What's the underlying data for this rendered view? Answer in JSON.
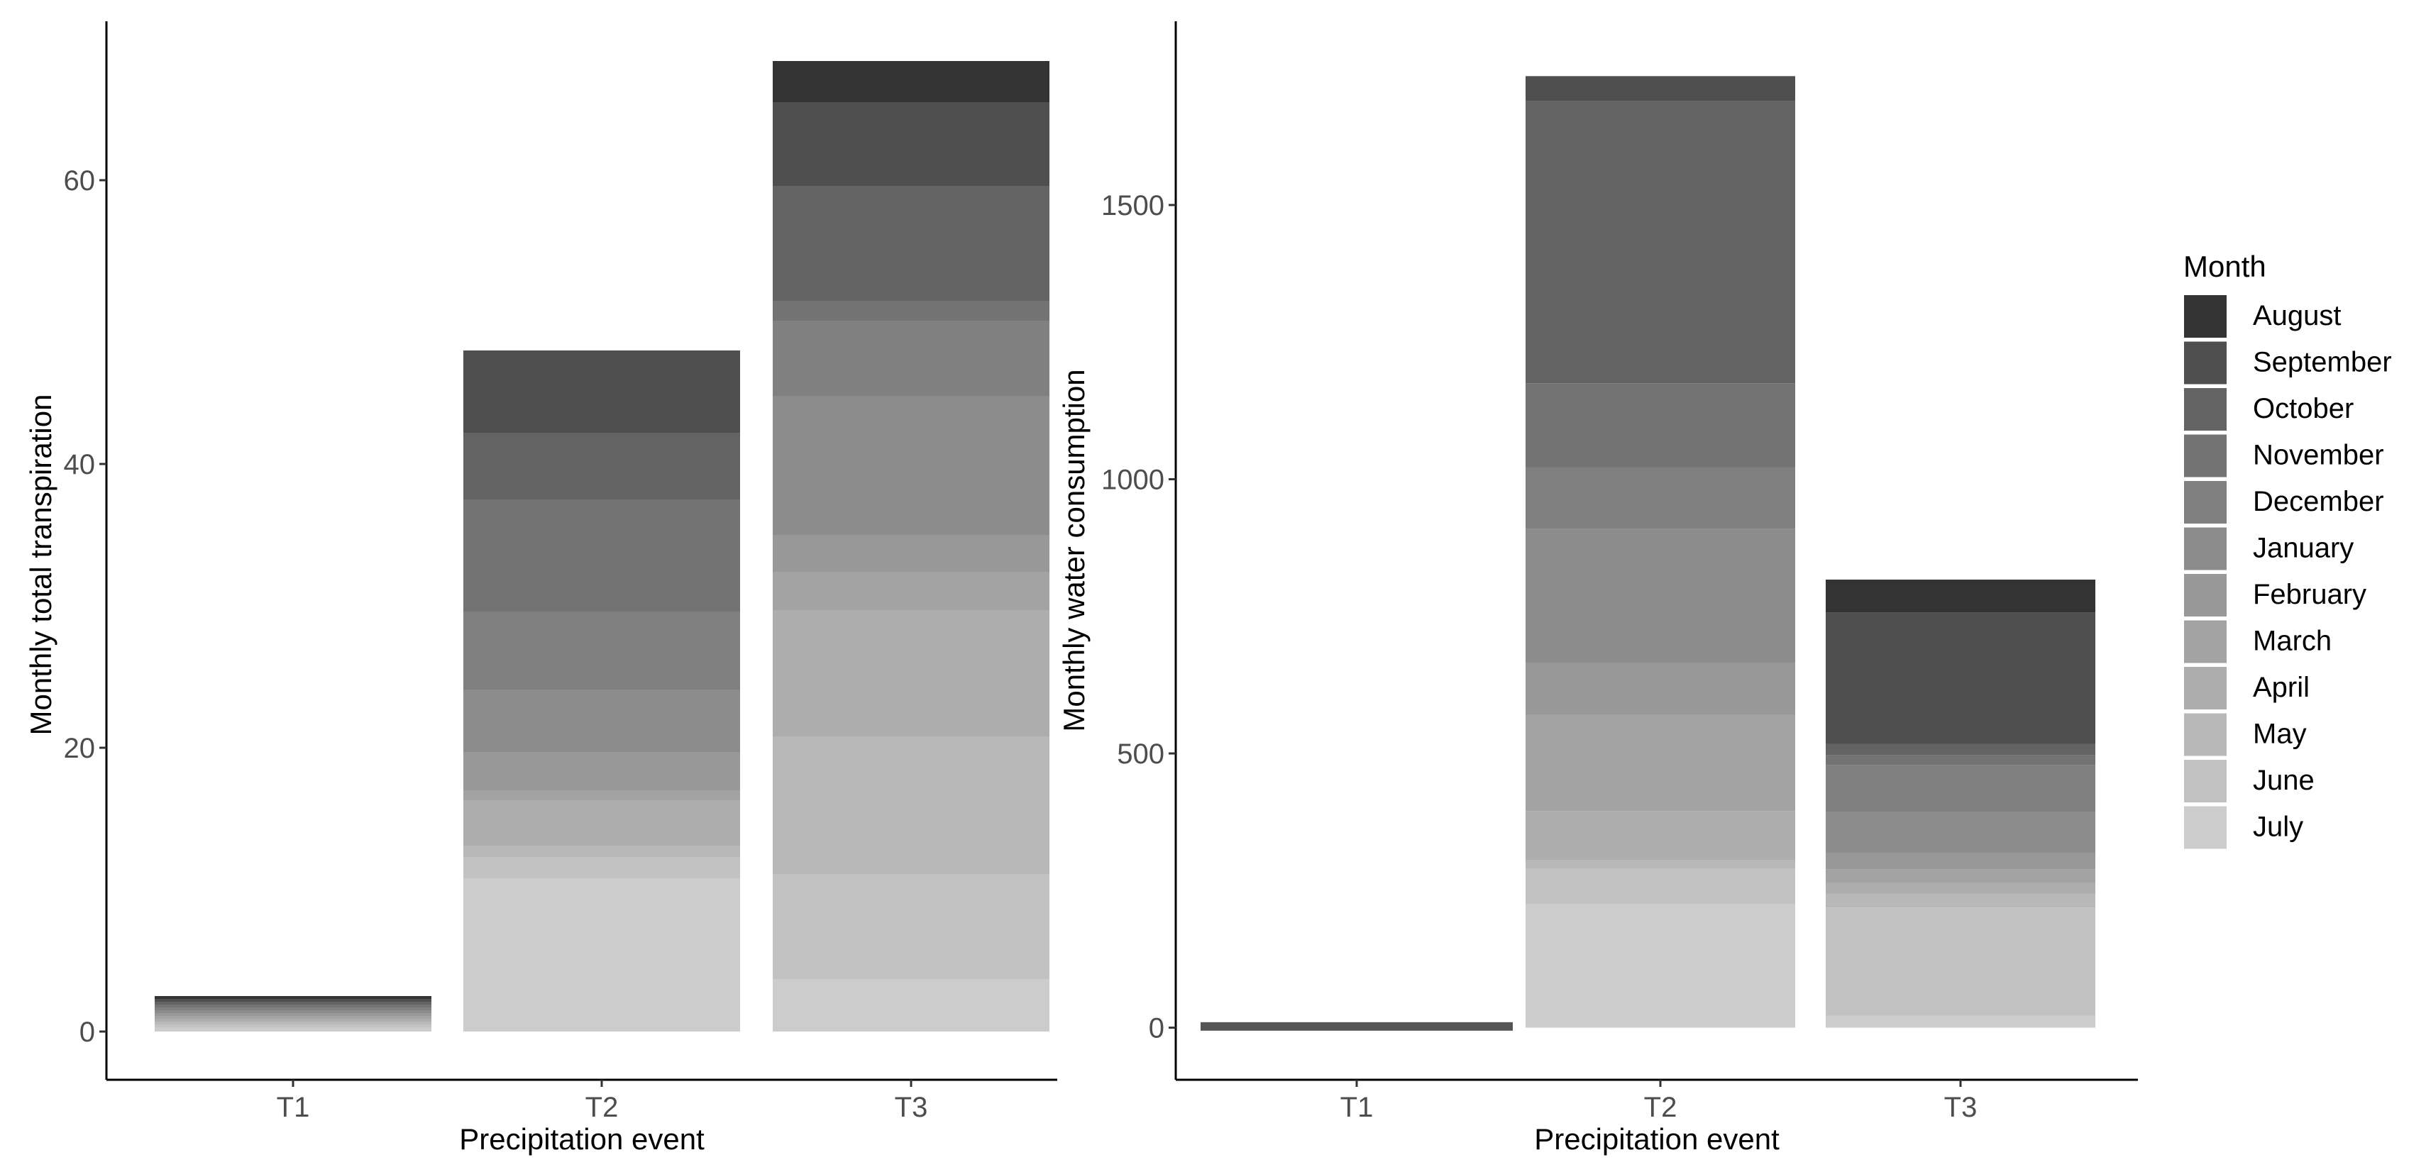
{
  "chart_data": [
    {
      "type": "bar",
      "stacked": true,
      "xlabel": "Precipitation event",
      "ylabel": "Monthly total transpiration",
      "categories": [
        "T1",
        "T2",
        "T3"
      ],
      "ylim": [
        -3.4,
        71.2
      ],
      "yticks": [
        0,
        20,
        40,
        60
      ],
      "grid": false,
      "series": [
        {
          "name": "July",
          "values": [
            0.3,
            10.8,
            3.7
          ]
        },
        {
          "name": "June",
          "values": [
            0.2,
            1.5,
            7.4
          ]
        },
        {
          "name": "May",
          "values": [
            0.2,
            0.8,
            9.7
          ]
        },
        {
          "name": "April",
          "values": [
            0.2,
            3.2,
            8.9
          ]
        },
        {
          "name": "March",
          "values": [
            0.2,
            0.7,
            2.7
          ]
        },
        {
          "name": "February",
          "values": [
            0.2,
            2.7,
            2.6
          ]
        },
        {
          "name": "January",
          "values": [
            0.2,
            4.4,
            9.8
          ]
        },
        {
          "name": "December",
          "values": [
            0.2,
            5.5,
            5.3
          ]
        },
        {
          "name": "November",
          "values": [
            0.2,
            7.9,
            1.4
          ]
        },
        {
          "name": "October",
          "values": [
            0.2,
            4.7,
            8.1
          ]
        },
        {
          "name": "September",
          "values": [
            0.2,
            5.8,
            5.9
          ]
        },
        {
          "name": "August",
          "values": [
            0.2,
            0.0,
            2.9
          ]
        }
      ]
    },
    {
      "type": "bar",
      "stacked": true,
      "xlabel": "Precipitation event",
      "ylabel": "Monthly water consumption",
      "categories": [
        "T1",
        "T2",
        "T3"
      ],
      "ylim": [
        -95,
        1835
      ],
      "yticks": [
        0,
        500,
        1000,
        1500
      ],
      "grid": false,
      "series": [
        {
          "name": "July",
          "values": [
            0,
            225,
            22
          ]
        },
        {
          "name": "June",
          "values": [
            0,
            65,
            197
          ]
        },
        {
          "name": "May",
          "values": [
            0,
            15,
            25
          ]
        },
        {
          "name": "April",
          "values": [
            0,
            90,
            20
          ]
        },
        {
          "name": "March",
          "values": [
            0,
            175,
            25
          ]
        },
        {
          "name": "February",
          "values": [
            0,
            95,
            30
          ]
        },
        {
          "name": "January",
          "values": [
            0,
            245,
            75
          ]
        },
        {
          "name": "December",
          "values": [
            0,
            112,
            85
          ]
        },
        {
          "name": "November",
          "values": [
            0,
            153,
            18
          ]
        },
        {
          "name": "October",
          "values": [
            0,
            515,
            20
          ]
        },
        {
          "name": "September",
          "values": [
            0,
            45,
            240
          ]
        },
        {
          "name": "August",
          "values": [
            0,
            0,
            60
          ]
        }
      ],
      "negative_slivers": {
        "note_values": [
          -15,
          0,
          0
        ]
      }
    }
  ],
  "legend": {
    "title": "Month",
    "position": "right",
    "items": [
      {
        "label": "August",
        "color": "#333333"
      },
      {
        "label": "September",
        "color": "#4f4f4f"
      },
      {
        "label": "October",
        "color": "#636363"
      },
      {
        "label": "November",
        "color": "#737373"
      },
      {
        "label": "December",
        "color": "#808080"
      },
      {
        "label": "January",
        "color": "#8c8c8c"
      },
      {
        "label": "February",
        "color": "#989898"
      },
      {
        "label": "March",
        "color": "#a3a3a3"
      },
      {
        "label": "April",
        "color": "#adadad"
      },
      {
        "label": "May",
        "color": "#b8b8b8"
      },
      {
        "label": "June",
        "color": "#c2c2c2"
      },
      {
        "label": "July",
        "color": "#cccccc"
      }
    ]
  }
}
